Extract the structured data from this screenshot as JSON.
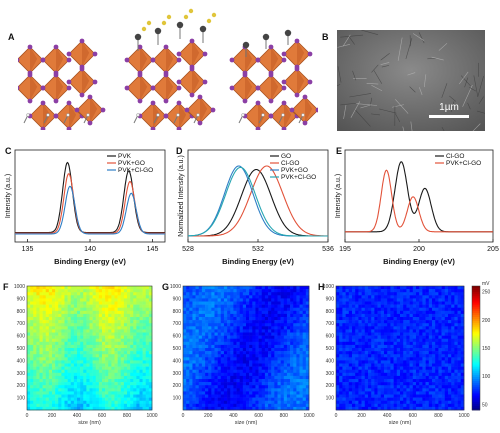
{
  "panels": {
    "A": "A",
    "B": "B",
    "C": "C",
    "D": "D",
    "E": "E",
    "F": "F",
    "G": "G",
    "H": "H"
  },
  "sem": {
    "scale_label": "1µm"
  },
  "colors": {
    "black_line": "#1a1a1a",
    "red_line": "#e2533a",
    "blue_line": "#2f7fc6",
    "teal_line": "#28a7b3",
    "octahedron": "#e07a3a",
    "iodine": "#8b3fa5"
  },
  "chart_data": [
    {
      "panel": "C",
      "type": "line",
      "xlabel": "Binding Energy (eV)",
      "ylabel": "Intensity (a.u.)",
      "xlim": [
        134,
        146
      ],
      "xticks": [
        135,
        140,
        145
      ],
      "legend_position": "top-right",
      "series": [
        {
          "name": "PVK",
          "peaks": [
            [
              138.2,
              1.0
            ],
            [
              143.1,
              0.88
            ]
          ],
          "baseline": 0.05
        },
        {
          "name": "PVK+GO",
          "peaks": [
            [
              138.3,
              0.85
            ],
            [
              143.2,
              0.74
            ]
          ],
          "baseline": 0.04
        },
        {
          "name": "PVK+Cl-GO",
          "peaks": [
            [
              138.4,
              0.68
            ],
            [
              143.3,
              0.58
            ]
          ],
          "baseline": 0.03
        }
      ]
    },
    {
      "panel": "D",
      "type": "line",
      "xlabel": "Binding Energy (eV)",
      "ylabel": "Normalized Intensity (a.u.)",
      "xlim": [
        528,
        536
      ],
      "xticks": [
        528,
        532,
        536
      ],
      "legend_position": "top-right",
      "series": [
        {
          "name": "GO",
          "center": 531.9,
          "width": 1.2,
          "height": 0.95
        },
        {
          "name": "Cl-GO",
          "center": 532.5,
          "width": 1.3,
          "height": 1.0
        },
        {
          "name": "PVK+GO",
          "center": 530.9,
          "width": 1.15,
          "height": 1.0
        },
        {
          "name": "PVK+Cl-GO",
          "center": 531.0,
          "width": 1.2,
          "height": 0.98
        }
      ]
    },
    {
      "panel": "E",
      "type": "line",
      "xlabel": "Binding Energy (eV)",
      "ylabel": "Intensity (a.u.)",
      "xlim": [
        195,
        205
      ],
      "xticks": [
        195,
        200,
        205
      ],
      "legend_position": "top-right",
      "series": [
        {
          "name": "Cl-GO",
          "peaks": [
            [
              198.8,
              1.0,
              0.6
            ],
            [
              200.4,
              0.62,
              0.6
            ]
          ]
        },
        {
          "name": "PVK+Cl-GO",
          "peaks": [
            [
              197.8,
              0.88,
              0.5
            ],
            [
              199.6,
              0.5,
              0.55
            ]
          ]
        }
      ]
    },
    {
      "panel": "F",
      "type": "heatmap",
      "xlabel": "size (nm)",
      "xlim": [
        0,
        1000
      ],
      "ylim": [
        0,
        1000
      ],
      "xticks": [
        0,
        200,
        400,
        600,
        800,
        1000
      ],
      "yticks": [
        100,
        200,
        300,
        400,
        500,
        600,
        700,
        800,
        900,
        1000
      ]
    },
    {
      "panel": "G",
      "type": "heatmap",
      "xlabel": "size (nm)",
      "xlim": [
        0,
        1000
      ],
      "ylim": [
        0,
        1000
      ],
      "xticks": [
        0,
        200,
        400,
        600,
        800,
        1000
      ],
      "yticks": [
        100,
        200,
        300,
        400,
        500,
        600,
        700,
        800,
        900,
        1000
      ]
    },
    {
      "panel": "H",
      "type": "heatmap",
      "xlabel": "size (nm)",
      "xlim": [
        0,
        1000
      ],
      "ylim": [
        0,
        1000
      ],
      "xticks": [
        0,
        200,
        400,
        600,
        800,
        1000
      ],
      "yticks": [
        100,
        200,
        300,
        400,
        500,
        600,
        700,
        800,
        900,
        1000
      ],
      "colorbar_unit": "mV",
      "colorbar_ticks": [
        50,
        100,
        150,
        200,
        250
      ]
    }
  ]
}
